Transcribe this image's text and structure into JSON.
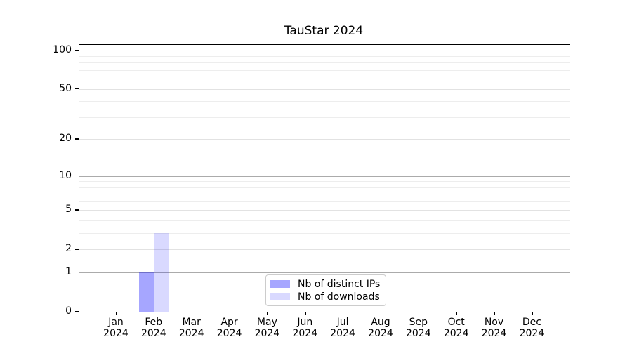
{
  "chart_data": {
    "type": "bar",
    "title": "TauStar 2024",
    "categories": [
      "Jan 2024",
      "Feb 2024",
      "Mar 2024",
      "Apr 2024",
      "May 2024",
      "Jun 2024",
      "Jul 2024",
      "Aug 2024",
      "Sep 2024",
      "Oct 2024",
      "Nov 2024",
      "Dec 2024"
    ],
    "x_tick_line1": [
      "Jan",
      "Feb",
      "Mar",
      "Apr",
      "May",
      "Jun",
      "Jul",
      "Aug",
      "Sep",
      "Oct",
      "Nov",
      "Dec"
    ],
    "x_tick_line2": "2024",
    "series": [
      {
        "name": "Nb of distinct IPs",
        "color": "rgba(0,0,255,0.35)",
        "values": [
          0,
          1,
          0,
          0,
          0,
          0,
          0,
          0,
          0,
          0,
          0,
          0
        ]
      },
      {
        "name": "Nb of downloads",
        "color": "rgba(0,0,255,0.15)",
        "values": [
          0,
          3,
          0,
          0,
          0,
          0,
          0,
          0,
          0,
          0,
          0,
          0
        ]
      }
    ],
    "y_scale": "log1p",
    "ylim": [
      0,
      110
    ],
    "y_ticks_labeled": [
      0,
      1,
      2,
      5,
      10,
      20,
      50,
      100
    ],
    "y_gridlines_major": [
      1,
      10,
      100
    ],
    "y_gridlines_mid": [
      2,
      5,
      20,
      50
    ],
    "y_gridlines_minor": [
      3,
      4,
      6,
      7,
      8,
      9,
      30,
      40,
      60,
      70,
      80,
      90
    ],
    "grid": "on",
    "legend_position": "lower center"
  },
  "colors": {
    "background": "#ffffff",
    "spine": "#000000",
    "text": "#000000",
    "grid_major": "#ababab",
    "grid_mid": "#e2e2e2",
    "grid_minor": "#ededed",
    "legend_border": "#cccccc",
    "bar_distinct_ips_on_white": "#a6a6ff",
    "bar_downloads_on_white": "#d9d9ff"
  }
}
